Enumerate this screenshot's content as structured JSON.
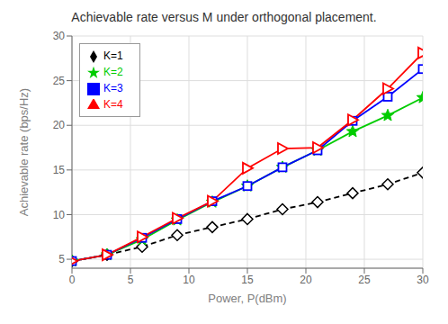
{
  "chart_data": {
    "type": "line",
    "title": "Achievable rate versus M under orthogonal placement.",
    "xlabel": "Power, P(dBm)",
    "ylabel": "Achievable rate (bps/Hz)",
    "x": [
      0,
      3,
      6,
      9,
      12,
      15,
      18,
      21,
      24,
      27,
      30
    ],
    "series": [
      {
        "name": "K=1",
        "color": "#000000",
        "marker": "diamond",
        "line_style": "dashed",
        "values": [
          4.8,
          5.5,
          6.4,
          7.7,
          8.6,
          9.5,
          10.6,
          11.4,
          12.4,
          13.4,
          14.7
        ]
      },
      {
        "name": "K=2",
        "color": "#00cc00",
        "marker": "star",
        "line_style": "solid",
        "values": [
          4.8,
          5.5,
          7.2,
          9.4,
          11.4,
          13.2,
          15.3,
          17.2,
          19.3,
          21.1,
          23.1
        ]
      },
      {
        "name": "K=3",
        "color": "#0000ff",
        "marker": "square",
        "line_style": "solid",
        "values": [
          4.8,
          5.5,
          7.4,
          9.5,
          11.5,
          13.2,
          15.3,
          17.2,
          20.5,
          23.2,
          26.3
        ]
      },
      {
        "name": "K=4",
        "color": "#ff0000",
        "marker": "triangle-right",
        "line_style": "solid",
        "values": [
          4.8,
          5.5,
          7.5,
          9.6,
          11.5,
          15.2,
          17.4,
          17.5,
          20.6,
          24.1,
          28.1
        ]
      }
    ],
    "xlim": [
      0,
      30
    ],
    "ylim": [
      4,
      30
    ],
    "xticks": [
      0,
      5,
      10,
      15,
      20,
      25,
      30
    ],
    "yticks": [
      5,
      10,
      15,
      20,
      25,
      30
    ],
    "grid": true,
    "legend": "upper left"
  }
}
